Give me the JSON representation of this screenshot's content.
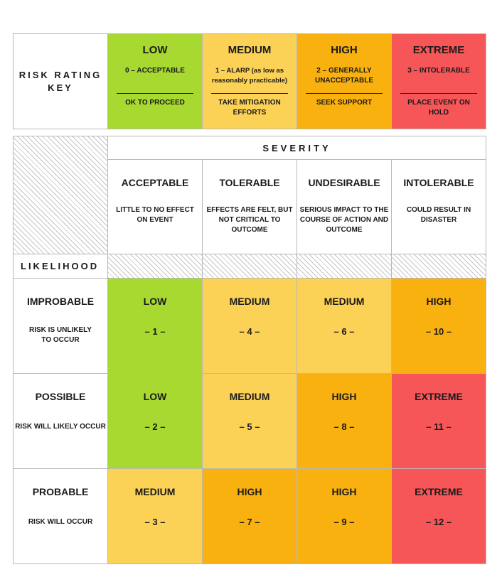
{
  "key": {
    "title": "RISK RATING KEY",
    "levels": [
      {
        "level": "LOW",
        "desc": "0 – ACCEPTABLE",
        "action": "OK TO PROCEED",
        "color": "#a7d931"
      },
      {
        "level": "MEDIUM",
        "desc": "1 – ALARP (as low as reasonably practicable)",
        "action": "TAKE MITIGATION EFFORTS",
        "color": "#fbd156"
      },
      {
        "level": "HIGH",
        "desc": "2 – GENERALLY UNACCEPTABLE",
        "action": "SEEK SUPPORT",
        "color": "#f9b10f"
      },
      {
        "level": "EXTREME",
        "desc": "3 – INTOLERABLE",
        "action": "PLACE EVENT ON HOLD",
        "color": "#f65657"
      }
    ]
  },
  "severity": {
    "title": "SEVERITY",
    "columns": [
      {
        "name": "ACCEPTABLE",
        "desc": "LITTLE TO NO EFFECT ON EVENT"
      },
      {
        "name": "TOLERABLE",
        "desc": "EFFECTS ARE FELT, BUT NOT CRITICAL TO OUTCOME"
      },
      {
        "name": "UNDESIRABLE",
        "desc": "SERIOUS IMPACT TO THE COURSE OF ACTION AND OUTCOME"
      },
      {
        "name": "INTOLERABLE",
        "desc": "COULD RESULT IN DISASTER"
      }
    ]
  },
  "likelihood": {
    "title": "LIKELIHOOD",
    "rows": [
      {
        "name": "IMPROBABLE",
        "desc": "RISK IS UNLIKELY TO OCCUR"
      },
      {
        "name": "POSSIBLE",
        "desc": "RISK WILL LIKELY OCCUR"
      },
      {
        "name": "PROBABLE",
        "desc": "RISK WILL OCCUR"
      }
    ]
  },
  "matrix": [
    [
      {
        "level": "LOW",
        "num": "– 1 –",
        "color": "#a7d931"
      },
      {
        "level": "MEDIUM",
        "num": "– 4 –",
        "color": "#fbd156"
      },
      {
        "level": "MEDIUM",
        "num": "– 6 –",
        "color": "#fbd156"
      },
      {
        "level": "HIGH",
        "num": "– 10 –",
        "color": "#f9b10f"
      }
    ],
    [
      {
        "level": "LOW",
        "num": "– 2 –",
        "color": "#a7d931"
      },
      {
        "level": "MEDIUM",
        "num": "– 5 –",
        "color": "#fbd156"
      },
      {
        "level": "HIGH",
        "num": "– 8 –",
        "color": "#f9b10f"
      },
      {
        "level": "EXTREME",
        "num": "– 11 –",
        "color": "#f65657"
      }
    ],
    [
      {
        "level": "MEDIUM",
        "num": "– 3 –",
        "color": "#fbd156"
      },
      {
        "level": "HIGH",
        "num": "– 7 –",
        "color": "#f9b10f"
      },
      {
        "level": "HIGH",
        "num": "– 9 –",
        "color": "#f9b10f"
      },
      {
        "level": "EXTREME",
        "num": "– 12 –",
        "color": "#f65657"
      }
    ]
  ]
}
